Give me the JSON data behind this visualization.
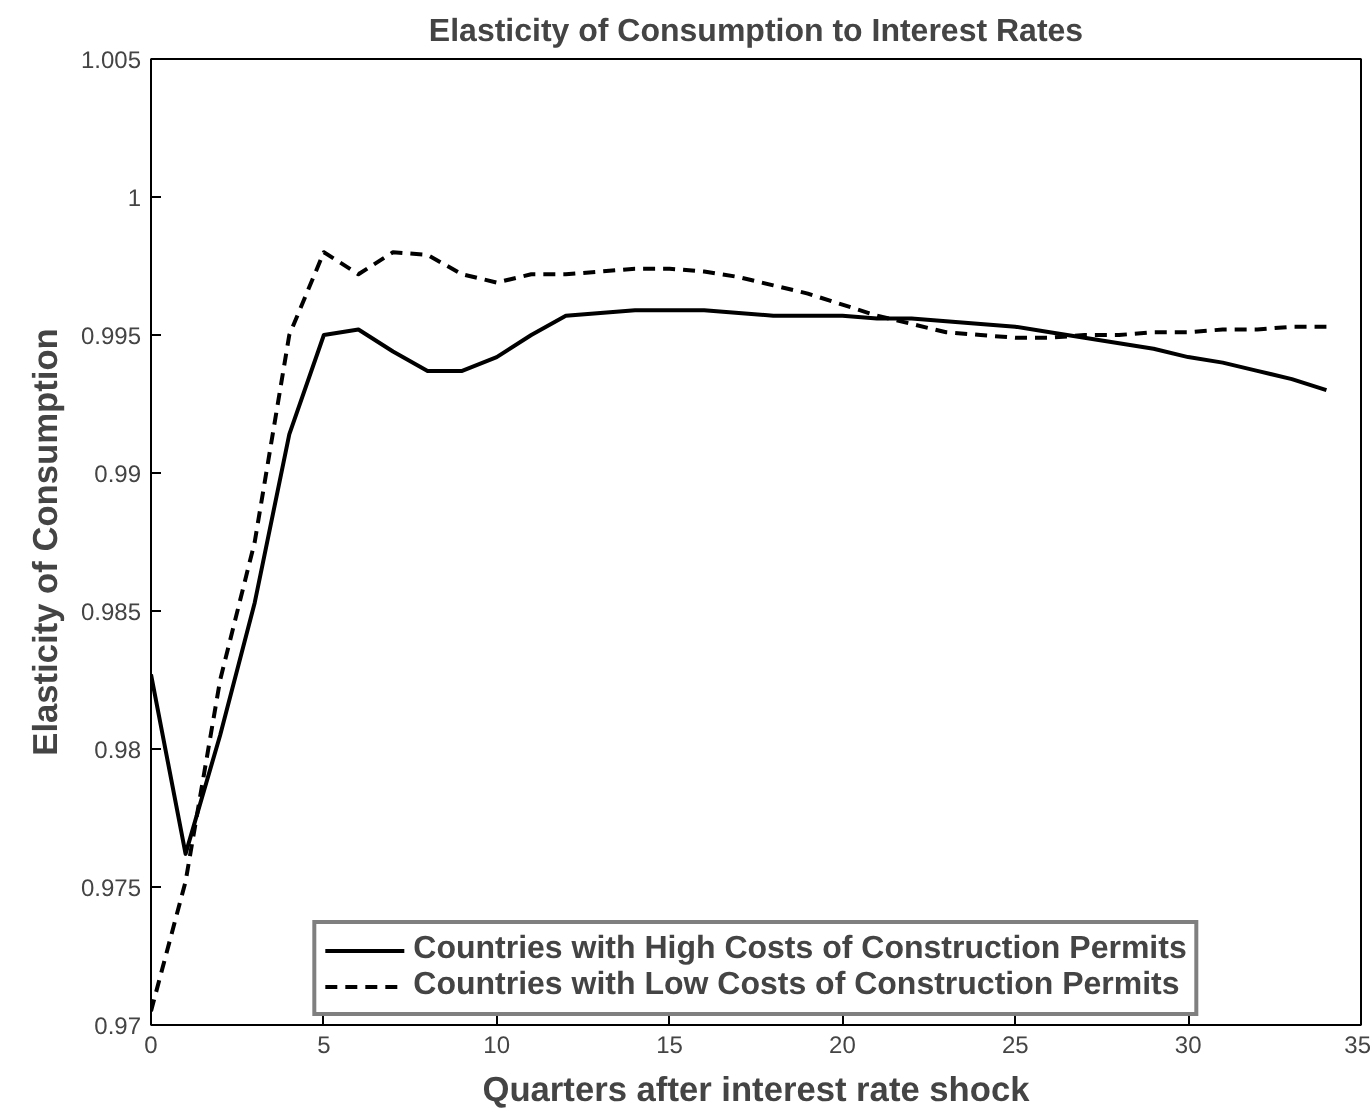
{
  "chart_data": {
    "type": "line",
    "title": "Elasticity of Consumption to Interest Rates",
    "xlabel": "Quarters after interest rate shock",
    "ylabel": "Elasticity of Consumption",
    "x": [
      0,
      1,
      2,
      3,
      4,
      5,
      6,
      7,
      8,
      9,
      10,
      11,
      12,
      13,
      14,
      15,
      16,
      17,
      18,
      19,
      20,
      21,
      22,
      23,
      24,
      25,
      26,
      27,
      28,
      29,
      30,
      31,
      32,
      33,
      34
    ],
    "series": [
      {
        "name": "Countries with High Costs of Construction Permits",
        "color": "#000000",
        "line_style": "solid",
        "values": [
          0.9827,
          0.9762,
          0.9805,
          0.9853,
          0.9914,
          0.995,
          0.9952,
          0.9944,
          0.9937,
          0.9937,
          0.9942,
          0.995,
          0.9957,
          0.9958,
          0.9959,
          0.9959,
          0.9959,
          0.9958,
          0.9957,
          0.9957,
          0.9957,
          0.9956,
          0.9956,
          0.9955,
          0.9954,
          0.9953,
          0.9951,
          0.9949,
          0.9947,
          0.9945,
          0.9942,
          0.994,
          0.9937,
          0.9934,
          0.993
        ]
      },
      {
        "name": "Countries with Low Costs of Construction Permits",
        "color": "#000000",
        "line_style": "dashed",
        "values": [
          0.9705,
          0.9752,
          0.9825,
          0.9875,
          0.995,
          0.998,
          0.9972,
          0.998,
          0.9979,
          0.9972,
          0.9969,
          0.9972,
          0.9972,
          0.9973,
          0.9974,
          0.9974,
          0.9973,
          0.9971,
          0.9968,
          0.9965,
          0.9961,
          0.9957,
          0.9954,
          0.9951,
          0.995,
          0.9949,
          0.9949,
          0.995,
          0.995,
          0.9951,
          0.9951,
          0.9952,
          0.9952,
          0.9953,
          0.9953
        ]
      }
    ],
    "xlim": [
      0,
      35
    ],
    "xticks": [
      0,
      5,
      10,
      15,
      20,
      25,
      30,
      35
    ],
    "ylim": [
      0.97,
      1.005
    ],
    "yticks": [
      {
        "value": 0.97,
        "label": "0.97"
      },
      {
        "value": 0.975,
        "label": "0.975"
      },
      {
        "value": 0.98,
        "label": "0.98"
      },
      {
        "value": 0.985,
        "label": "0.985"
      },
      {
        "value": 0.99,
        "label": "0.99"
      },
      {
        "value": 0.995,
        "label": "0.995"
      },
      {
        "value": 1.0,
        "label": "1"
      },
      {
        "value": 1.005,
        "label": "1.005"
      }
    ],
    "grid": false,
    "legend": "bottom",
    "marker": "none"
  }
}
